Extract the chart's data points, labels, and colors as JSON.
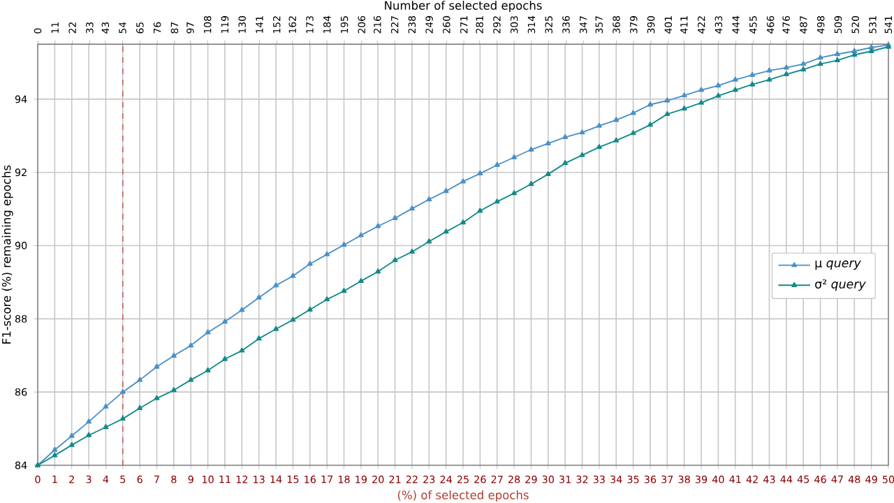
{
  "chart_data": {
    "type": "line",
    "xlabel": "(%) of selected epochs",
    "ylabel": "F1-score (%) remaining epochs",
    "x2label": "Number of selected epochs",
    "x": [
      0,
      1,
      2,
      3,
      4,
      5,
      6,
      7,
      8,
      9,
      10,
      11,
      12,
      13,
      14,
      15,
      16,
      17,
      18,
      19,
      20,
      21,
      22,
      23,
      24,
      25,
      26,
      27,
      28,
      29,
      30,
      31,
      32,
      33,
      34,
      35,
      36,
      37,
      38,
      39,
      40,
      41,
      42,
      43,
      44,
      45,
      46,
      47,
      48,
      49,
      50
    ],
    "series": [
      {
        "name": "µ *query*",
        "color": "#4a90c8",
        "values": [
          84.0,
          84.42,
          84.8,
          85.19,
          85.6,
          86.0,
          86.33,
          86.69,
          86.99,
          87.27,
          87.63,
          87.92,
          88.24,
          88.58,
          88.91,
          89.17,
          89.5,
          89.76,
          90.02,
          90.28,
          90.53,
          90.75,
          91.01,
          91.26,
          91.49,
          91.75,
          91.97,
          92.2,
          92.41,
          92.62,
          92.79,
          92.96,
          93.09,
          93.27,
          93.43,
          93.62,
          93.85,
          93.96,
          94.1,
          94.25,
          94.37,
          94.53,
          94.66,
          94.78,
          94.86,
          94.96,
          95.13,
          95.23,
          95.31,
          95.41,
          95.48
        ]
      },
      {
        "name": "σ² *query*",
        "color": "#138a8a",
        "values": [
          84.0,
          84.27,
          84.55,
          84.82,
          85.04,
          85.27,
          85.56,
          85.83,
          86.05,
          86.33,
          86.59,
          86.9,
          87.13,
          87.46,
          87.72,
          87.97,
          88.25,
          88.53,
          88.76,
          89.03,
          89.29,
          89.6,
          89.83,
          90.11,
          90.38,
          90.63,
          90.95,
          91.2,
          91.43,
          91.68,
          91.95,
          92.25,
          92.47,
          92.69,
          92.87,
          93.07,
          93.3,
          93.59,
          93.74,
          93.9,
          94.09,
          94.25,
          94.4,
          94.53,
          94.68,
          94.81,
          94.96,
          95.06,
          95.21,
          95.31,
          95.43
        ]
      }
    ],
    "xlim": [
      0,
      50
    ],
    "xticks": [
      0,
      1,
      2,
      3,
      4,
      5,
      6,
      7,
      8,
      9,
      10,
      11,
      12,
      13,
      14,
      15,
      16,
      17,
      18,
      19,
      20,
      21,
      22,
      23,
      24,
      25,
      26,
      27,
      28,
      29,
      30,
      31,
      32,
      33,
      34,
      35,
      36,
      37,
      38,
      39,
      40,
      41,
      42,
      43,
      44,
      45,
      46,
      47,
      48,
      49,
      50
    ],
    "ylim": [
      84,
      95.5
    ],
    "yticks": [
      84,
      86,
      88,
      90,
      92,
      94
    ],
    "x2lim": [
      0,
      541
    ],
    "x2ticks": [
      0,
      11,
      22,
      33,
      43,
      54,
      65,
      76,
      87,
      97,
      108,
      119,
      130,
      141,
      152,
      162,
      173,
      184,
      195,
      206,
      216,
      227,
      238,
      249,
      260,
      271,
      281,
      292,
      303,
      314,
      325,
      336,
      347,
      357,
      368,
      379,
      390,
      401,
      411,
      422,
      433,
      444,
      455,
      466,
      476,
      487,
      498,
      509,
      520,
      531,
      541
    ],
    "ref_lines": [
      {
        "axis": "x",
        "value": 5,
        "color": "#c0504d",
        "line_style": "dashed"
      }
    ],
    "grid": true,
    "legend": "right",
    "marker": "triangle",
    "line_style": "solid"
  }
}
